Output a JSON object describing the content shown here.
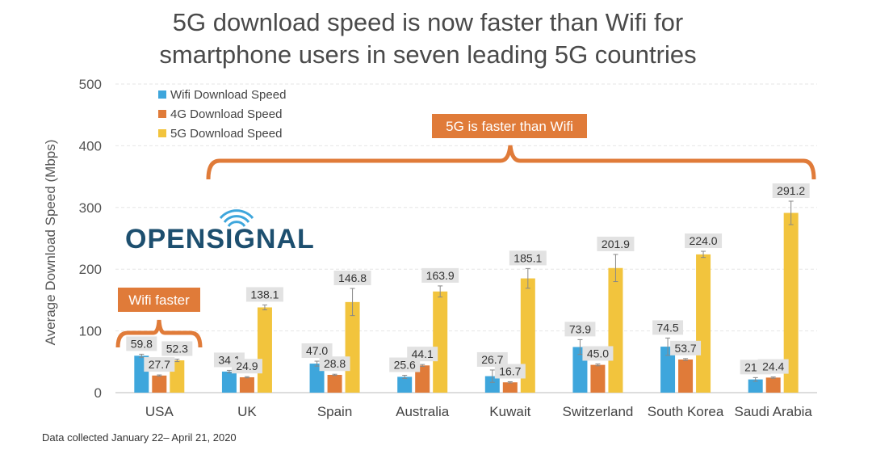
{
  "chart_data": {
    "type": "bar",
    "title": "5G download speed is now faster than Wifi for smartphone users in seven leading 5G countries",
    "title_lines": [
      "5G download speed is now faster than Wifi for",
      "smartphone users in seven leading 5G countries"
    ],
    "ylabel": "Average Download Speed (Mbps)",
    "xlabel": "",
    "ylim": [
      0,
      500
    ],
    "yticks": [
      0,
      100,
      200,
      300,
      400,
      500
    ],
    "grid": true,
    "legend_position": "top-left",
    "categories": [
      "USA",
      "UK",
      "Spain",
      "Australia",
      "Kuwait",
      "Switzerland",
      "South Korea",
      "Saudi Arabia"
    ],
    "series": [
      {
        "name": "Wifi Download Speed",
        "color": "#3ea6dc",
        "values": [
          59.8,
          34.1,
          47.0,
          25.6,
          26.7,
          73.9,
          74.5,
          21.4
        ],
        "labels": [
          "59.8",
          "34.1",
          "47.0",
          "25.6",
          "26.7",
          "73.9",
          "74.5",
          "21.4"
        ]
      },
      {
        "name": "4G Download Speed",
        "color": "#e07b39",
        "values": [
          27.7,
          24.9,
          28.8,
          44.1,
          16.7,
          45.0,
          53.7,
          24.4
        ],
        "labels": [
          "27.7",
          "24.9",
          "28.8",
          "44.1",
          "16.7",
          "45.0",
          "53.7",
          "24.4"
        ]
      },
      {
        "name": "5G Download Speed",
        "color": "#f2c43d",
        "values": [
          52.3,
          138.1,
          146.8,
          163.9,
          185.1,
          201.9,
          224.0,
          291.2
        ],
        "labels": [
          "52.3",
          "138.1",
          "146.8",
          "163.9",
          "185.1",
          "201.9",
          "224.0",
          "291.2"
        ]
      }
    ],
    "error_bars": {
      "series_0": [
        2.5,
        2,
        4,
        2.5,
        10,
        12,
        14,
        3
      ],
      "series_1": [
        1,
        1,
        1,
        1.5,
        1,
        1.5,
        1.5,
        1
      ],
      "series_2": [
        2,
        4,
        22,
        9,
        16,
        22,
        5,
        19
      ]
    },
    "annotations": [
      {
        "text": "5G is faster than Wifi",
        "color": "#e07b39"
      },
      {
        "text": "Wifi faster",
        "color": "#e07b39"
      }
    ]
  },
  "branding": {
    "logo": "OPENSIGNAL",
    "logo_icon": "wifi-signal-icon"
  },
  "footnote": "Data collected January 22– April 21, 2020"
}
